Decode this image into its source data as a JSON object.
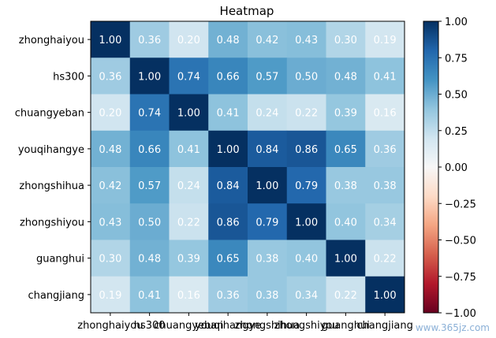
{
  "chart_data": {
    "type": "heatmap",
    "title": "Heatmap",
    "labels": [
      "zhonghaiyou",
      "hs300",
      "chuangyeban",
      "youqihangye",
      "zhongshihua",
      "zhongshiyou",
      "guanghui",
      "changjiang"
    ],
    "values": [
      [
        1.0,
        0.36,
        0.2,
        0.48,
        0.42,
        0.43,
        0.3,
        0.19
      ],
      [
        0.36,
        1.0,
        0.74,
        0.66,
        0.57,
        0.5,
        0.48,
        0.41
      ],
      [
        0.2,
        0.74,
        1.0,
        0.41,
        0.24,
        0.22,
        0.39,
        0.16
      ],
      [
        0.48,
        0.66,
        0.41,
        1.0,
        0.84,
        0.86,
        0.65,
        0.36
      ],
      [
        0.42,
        0.57,
        0.24,
        0.84,
        1.0,
        0.79,
        0.38,
        0.38
      ],
      [
        0.43,
        0.5,
        0.22,
        0.86,
        0.79,
        1.0,
        0.4,
        0.34
      ],
      [
        0.3,
        0.48,
        0.39,
        0.65,
        0.38,
        0.4,
        1.0,
        0.22
      ],
      [
        0.19,
        0.41,
        0.16,
        0.36,
        0.38,
        0.34,
        0.22,
        1.0
      ]
    ],
    "colorbar": {
      "range": [
        -1.0,
        1.0
      ],
      "ticks": [
        1.0,
        0.75,
        0.5,
        0.25,
        0.0,
        -0.25,
        -0.5,
        -0.75,
        -1.0
      ],
      "tick_labels": [
        "1.00",
        "0.75",
        "0.50",
        "0.25",
        "0.00",
        "−0.25",
        "−0.50",
        "−0.75",
        "−1.00"
      ],
      "colormap": "RdBu"
    }
  },
  "watermark": {
    "text": "www.365jz.com"
  }
}
